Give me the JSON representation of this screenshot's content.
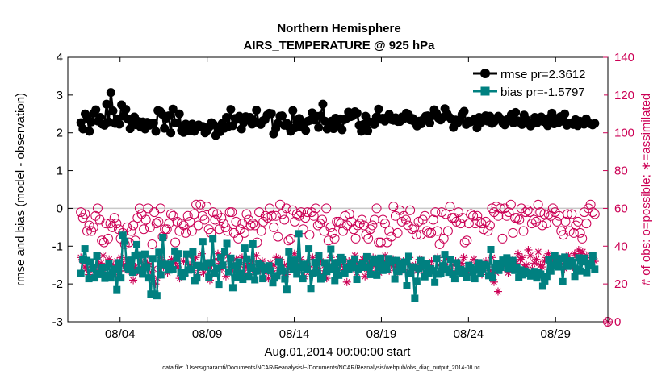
{
  "chart_data": {
    "type": "line",
    "title": "Northern Hemisphere",
    "subtitle": "AIRS_TEMPERATURE @ 925 hPa",
    "xlabel": "Aug.01,2014 00:00:00 start",
    "ylabel_left": "rmse and bias (model - observation)",
    "ylabel_right": "# of obs: o=possible; ∗=assimilated",
    "footer": "data file: /Users/gharamti/Documents/NCAR/Reanalysis/~/Documents/NCAR/Reanalysis/webpub/obs_diag_output_2014-08.nc",
    "x_unit": "days since Aug.01,2014 00:00",
    "xlim": [
      0,
      31
    ],
    "ylim_left": [
      -3,
      4
    ],
    "ylim_right": [
      0,
      140
    ],
    "x_ticks": [
      {
        "day": 3,
        "label": "08/04"
      },
      {
        "day": 8,
        "label": "08/09"
      },
      {
        "day": 13,
        "label": "08/14"
      },
      {
        "day": 18,
        "label": "08/19"
      },
      {
        "day": 23,
        "label": "08/24"
      },
      {
        "day": 28,
        "label": "08/29"
      }
    ],
    "y_ticks_left": [
      -3,
      -2,
      -1,
      0,
      1,
      2,
      3,
      4
    ],
    "y_ticks_right": [
      0,
      20,
      40,
      60,
      80,
      100,
      120,
      140
    ],
    "grid": false,
    "legend_position": "top-right",
    "series": [
      {
        "name": "rmse pr=2.3612",
        "axis": "left",
        "color": "#000000",
        "marker": "circle",
        "values": [
          2.27,
          2.1,
          2.5,
          2.38,
          2.04,
          2.29,
          2.52,
          2.61,
          2.31,
          2.41,
          2.23,
          2.2,
          2.76,
          2.29,
          3.07,
          2.58,
          2.25,
          2.37,
          2.23,
          2.74,
          2.44,
          2.62,
          2.36,
          2.11,
          2.29,
          2.42,
          2.21,
          2.3,
          2.15,
          2.29,
          2.1,
          2.28,
          2.2,
          2.24,
          2.26,
          2.04,
          2.59,
          2.57,
          2.49,
          2.12,
          2.39,
          2.45,
          2.0,
          2.63,
          2.27,
          2.26,
          2.5,
          2.06,
          2.01,
          2.23,
          2.05,
          2.15,
          2.23,
          2.04,
          2.14,
          2.21,
          2.17,
          2.17,
          2.0,
          2.06,
          2.16,
          2.27,
          2.22,
          1.93,
          2.13,
          2.03,
          2.25,
          2.12,
          2.41,
          2.17,
          2.62,
          2.19,
          2.38,
          2.36,
          2.44,
          2.1,
          2.27,
          2.43,
          2.34,
          2.41,
          2.23,
          2.31,
          2.6,
          2.27,
          2.22,
          2.32,
          2.35,
          2.47,
          2.52,
          2.51,
          1.97,
          2.11,
          2.25,
          2.44,
          2.45,
          2.2,
          2.26,
          2.17,
          2.04,
          2.59,
          2.13,
          2.27,
          2.38,
          2.16,
          2.27,
          2.06,
          2.31,
          2.33,
          2.53,
          2.34,
          2.44,
          2.14,
          2.45,
          2.76,
          2.31,
          2.1,
          2.26,
          2.31,
          2.11,
          2.39,
          2.2,
          2.37,
          2.08,
          2.35,
          2.38,
          2.55,
          2.43,
          2.45,
          2.56,
          2.52,
          2.2,
          2.04,
          2.22,
          2.44,
          2.05,
          2.29,
          2.28,
          2.22,
          2.42,
          2.63,
          2.36,
          2.39,
          2.31,
          2.41,
          2.49,
          2.35,
          2.33,
          2.4,
          2.3,
          2.3,
          2.42,
          2.38,
          2.52,
          2.48,
          2.34,
          2.38,
          2.28,
          2.18,
          2.31,
          2.24,
          2.36,
          2.44,
          2.45,
          2.26,
          2.45,
          2.61,
          2.52,
          2.39,
          2.34,
          2.41,
          2.64,
          2.51,
          2.42,
          2.36,
          2.14,
          2.34,
          2.27,
          2.35,
          2.49,
          2.57,
          2.22,
          2.31,
          2.29,
          2.32,
          2.37,
          2.13,
          2.41,
          2.28,
          2.34,
          2.45,
          2.31,
          2.44,
          2.25,
          2.29,
          2.38,
          2.44,
          2.36,
          2.27,
          2.21,
          2.35,
          2.32,
          2.48,
          2.26,
          2.54,
          2.32,
          2.28,
          2.22,
          2.47,
          2.35,
          2.28,
          2.18,
          2.24,
          2.41,
          2.26,
          2.37,
          2.42,
          2.3,
          2.36,
          2.19,
          2.4,
          2.52,
          2.24,
          2.38,
          2.27,
          2.43,
          2.31,
          2.5,
          2.2,
          2.25,
          2.25,
          2.22,
          2.35,
          2.19,
          2.31,
          2.25,
          2.23,
          2.37,
          2.26,
          2.24,
          2.21,
          2.25
        ]
      },
      {
        "name": "bias pr=-1.5797",
        "axis": "left",
        "color": "#008080",
        "marker": "square",
        "values": [
          -1.72,
          -1.35,
          -1.07,
          -1.38,
          -1.86,
          -1.42,
          -1.58,
          -1.84,
          -1.26,
          -1.73,
          -1.75,
          -1.56,
          -1.85,
          -1.76,
          -1.46,
          -1.84,
          -1.72,
          -1.61,
          -2.15,
          -1.44,
          -1.84,
          -0.71,
          -0.87,
          -1.57,
          -1.61,
          -1.37,
          -1.69,
          -1.24,
          -0.96,
          -1.64,
          -1.23,
          -1.74,
          -1.21,
          -1.55,
          -1.84,
          -2.27,
          -1.33,
          -2.27,
          -2.31,
          -1.16,
          -1.76,
          -0.77,
          -1.48,
          -1.52,
          -1.63,
          -1.48,
          -1.62,
          -1.13,
          -1.32,
          -1.2,
          -1.7,
          -1.8,
          -1.71,
          -1.21,
          -1.63,
          -1.61,
          -1.15,
          -1.91,
          -1.84,
          -1.51,
          -1.55,
          -0.88,
          -1.55,
          -1.45,
          -1.82,
          -1.44,
          -0.8,
          -1.72,
          -1.59,
          -2.01,
          -1.3,
          -1.5,
          -1.14,
          -0.93,
          -1.68,
          -1.32,
          -2.1,
          -1.52,
          -1.83,
          -1.42,
          -1.72,
          -1.88,
          -1.05,
          -1.34,
          -1.8,
          -1.58,
          -0.94,
          -1.89,
          -1.66,
          -1.47,
          -1.51,
          -1.86,
          -1.62,
          -1.56,
          -1.52,
          -1.65,
          -1.97,
          -1.84,
          -1.78,
          -1.42,
          -1.59,
          -1.66,
          -1.87,
          -2.14,
          -1.15,
          -1.49,
          -1.62,
          -1.37,
          -1.74,
          -0.67,
          -1.56,
          -1.86,
          -1.48,
          -1.61,
          -1.07,
          -2.12,
          -1.73,
          -1.43,
          -1.7,
          -1.26,
          -1.87,
          -1.83,
          -1.44,
          -1.67,
          -1.55,
          -1.08,
          -1.61,
          -1.91,
          -1.44,
          -1.77,
          -1.3,
          -1.36,
          -1.73,
          -1.58,
          -1.62,
          -1.45,
          -1.57,
          -1.34,
          -1.88,
          -1.6,
          -1.5,
          -1.46,
          -1.56,
          -1.28,
          -1.56,
          -1.75,
          -1.44,
          -1.34,
          -1.77,
          -1.46,
          -1.32,
          -1.64,
          -1.5,
          -1.61,
          -1.33,
          -1.42,
          -1.38,
          -1.87,
          -1.38,
          -1.67,
          -1.46,
          -1.61,
          -1.42,
          -2.05,
          -1.27,
          -1.73,
          -1.55,
          -2.38,
          -1.93,
          -1.59,
          -1.38,
          -1.52,
          -1.81,
          -1.46,
          -1.72,
          -1.6,
          -1.65,
          -1.96,
          -1.33,
          -1.74,
          -1.71,
          -1.52,
          -1.22,
          -1.61,
          -1.69,
          -1.35,
          -1.75,
          -1.86,
          -1.44,
          -1.67,
          -1.62,
          -1.72,
          -1.66,
          -1.82,
          -1.51,
          -1.58,
          -1.68,
          -1.86,
          -1.61,
          -1.44,
          -1.71,
          -1.6,
          -1.49,
          -1.52,
          -1.78,
          -1.09,
          -1.84,
          -1.56,
          -1.47,
          -1.64,
          -1.56,
          -1.37,
          -1.44,
          -1.31,
          -1.59,
          -1.49,
          -1.38,
          -1.64,
          -1.57,
          -1.83,
          -1.63,
          -1.76,
          -1.66,
          -1.7,
          -1.72,
          -1.79,
          -1.73,
          -1.67,
          -1.84,
          -1.69,
          -1.74,
          -2.06,
          -1.92,
          -1.8,
          -1.36,
          -1.66,
          -1.52,
          -1.25,
          -1.47,
          -1.55,
          -1.33,
          -1.94,
          -1.29,
          -1.53,
          -1.53,
          -1.39,
          -1.43,
          -1.8,
          -1.61,
          -1.31,
          -1.66,
          -1.41,
          -1.32,
          -1.7,
          -1.51,
          -1.46,
          -1.26,
          -1.61
        ]
      },
      {
        "name": "possible",
        "axis": "right",
        "color": "#cc0055",
        "marker": "open-circle",
        "values": [
          58,
          55,
          57,
          48,
          51,
          48,
          50,
          56,
          60,
          54,
          43,
          42,
          52,
          44,
          52,
          50,
          55,
          52,
          49,
          44,
          47,
          41,
          50,
          42,
          48,
          51,
          43,
          55,
          60,
          57,
          49,
          54,
          60,
          50,
          41,
          58,
          52,
          53,
          60,
          45,
          49,
          49,
          52,
          57,
          56,
          42,
          53,
          48,
          52,
          51,
          47,
          56,
          53,
          48,
          57,
          62,
          51,
          62,
          56,
          54,
          61,
          49,
          47,
          58,
          54,
          57,
          49,
          55,
          52,
          50,
          48,
          58,
          58,
          47,
          53,
          44,
          49,
          52,
          47,
          57,
          54,
          51,
          52,
          51,
          42,
          58,
          48,
          53,
          56,
          55,
          60,
          56,
          50,
          56,
          45,
          62,
          57,
          54,
          60,
          43,
          44,
          59,
          53,
          57,
          56,
          58,
          49,
          55,
          58,
          46,
          58,
          56,
          60,
          51,
          52,
          54,
          48,
          60,
          43,
          50,
          47,
          44,
          53,
          53,
          52,
          48,
          56,
          51,
          57,
          53,
          49,
          44,
          51,
          52,
          54,
          51,
          46,
          44,
          49,
          51,
          54,
          60,
          42,
          42,
          54,
          52,
          42,
          48,
          45,
          61,
          56,
          47,
          59,
          53,
          56,
          54,
          51,
          59,
          49,
          50,
          46,
          53,
          46,
          54,
          56,
          48,
          47,
          47,
          54,
          58,
          48,
          41,
          58,
          44,
          57,
          48,
          61,
          55,
          55,
          53,
          58,
          52,
          55,
          42,
          43,
          52,
          57,
          56,
          52,
          56,
          53,
          52,
          49,
          53,
          48,
          51,
          60,
          58,
          61,
          56,
          60,
          44,
          60,
          56,
          58,
          62,
          47,
          55,
          55,
          54,
          60,
          48,
          58,
          59,
          58,
          52,
          54,
          53,
          62,
          58,
          51,
          57,
          52,
          57,
          56,
          60,
          58,
          53,
          56,
          48,
          46,
          53,
          57,
          48,
          57,
          47,
          51,
          53,
          47,
          44,
          58,
          52,
          60,
          62,
          58,
          57
        ]
      },
      {
        "name": "assimilated",
        "axis": "right",
        "color": "#cc0055",
        "marker": "asterisk",
        "values": [
          34,
          32,
          29,
          28,
          25,
          30,
          28,
          27,
          26,
          30,
          31,
          35,
          28,
          24,
          33,
          30,
          29,
          24,
          32,
          27,
          34,
          30,
          28,
          32,
          27,
          31,
          22,
          29,
          27,
          26,
          32,
          28,
          35,
          31,
          30,
          26,
          28,
          20,
          23,
          28,
          34,
          29,
          31,
          26,
          30,
          33,
          28,
          31,
          29,
          23,
          25,
          32,
          26,
          35,
          30,
          28,
          27,
          34,
          25,
          29,
          36,
          26,
          31,
          29,
          22,
          30,
          27,
          33,
          36,
          31,
          28,
          29,
          24,
          35,
          32,
          27,
          30,
          33,
          28,
          30,
          34,
          26,
          29,
          31,
          25,
          32,
          28,
          35,
          30,
          27,
          32,
          29,
          26,
          23,
          31,
          28,
          30,
          34,
          27,
          33,
          26,
          30,
          25,
          28,
          32,
          29,
          36,
          31,
          27,
          33,
          30,
          24,
          31,
          28,
          26,
          34,
          29,
          31,
          27,
          32,
          25,
          30,
          23,
          29,
          34,
          28,
          31,
          26,
          33,
          30,
          27,
          29,
          21,
          32,
          28,
          31,
          35,
          26,
          30,
          29,
          33,
          24,
          28,
          31,
          27,
          34,
          30,
          29,
          26,
          32,
          28,
          35,
          31,
          27,
          30,
          33,
          29,
          26,
          30,
          28,
          32,
          27,
          31,
          34,
          26,
          29,
          30,
          27,
          33,
          28,
          31,
          25,
          30,
          29,
          32,
          28,
          26,
          34,
          30,
          27,
          31,
          29,
          33,
          28,
          26,
          30,
          32,
          27,
          29,
          31,
          34,
          28,
          26,
          30,
          29,
          33,
          27,
          31,
          28,
          25,
          30,
          32,
          29,
          27,
          34,
          21,
          26,
          16,
          30,
          28,
          32,
          29,
          26,
          33,
          30,
          28,
          31,
          36,
          33,
          34,
          29,
          30,
          38,
          35,
          28,
          31,
          33,
          37,
          30,
          29,
          32,
          34,
          36,
          28,
          31,
          35,
          33,
          32,
          30,
          34,
          28,
          33,
          35,
          31,
          29,
          36,
          34,
          38,
          36,
          37,
          33,
          35,
          30,
          31,
          34,
          32
        ]
      }
    ],
    "legend": [
      {
        "label": "rmse pr=2.3612",
        "color": "#000000",
        "marker": "circle"
      },
      {
        "label": "bias pr=-1.5797",
        "color": "#008080",
        "marker": "square"
      }
    ]
  }
}
